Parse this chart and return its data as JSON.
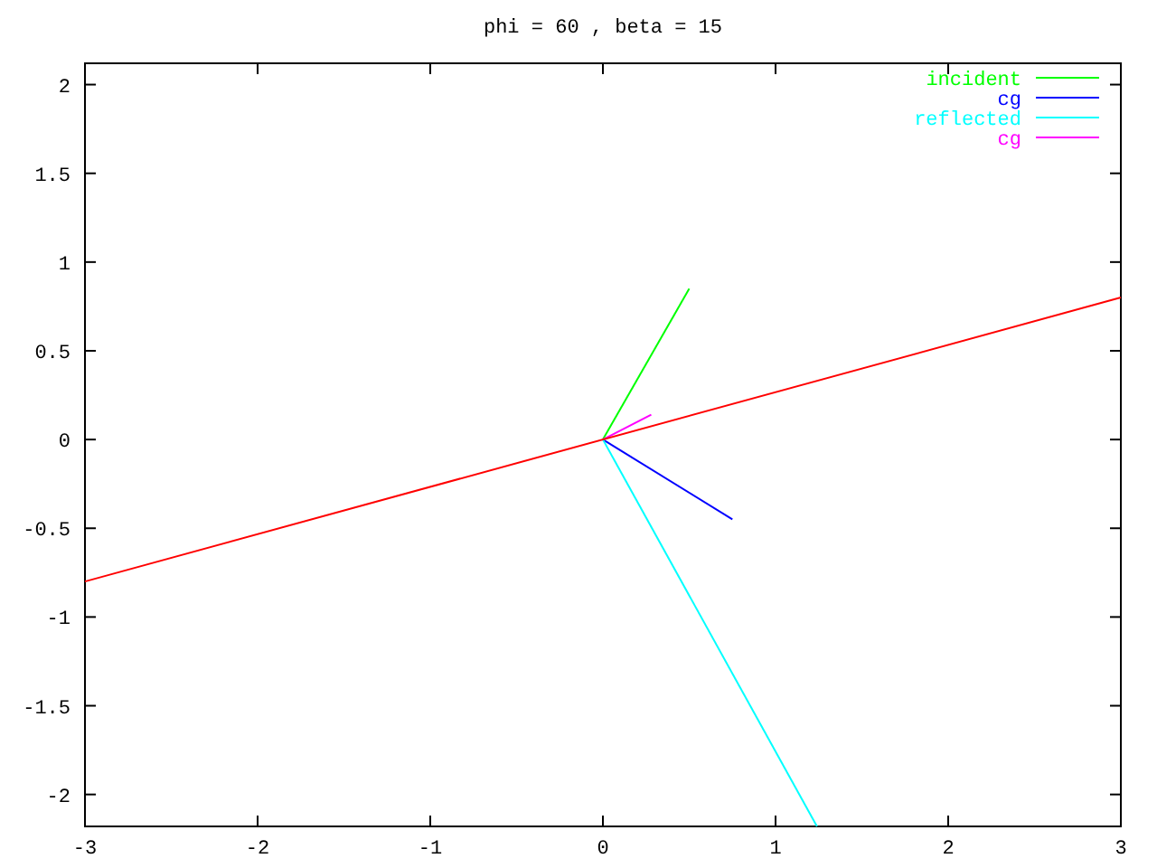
{
  "chart_data": {
    "type": "line",
    "title": "phi = 60 , beta = 15",
    "series": [
      {
        "name": "incident",
        "color": "#00ff00",
        "x": [
          0,
          0.5
        ],
        "values": [
          0,
          0.85
        ]
      },
      {
        "name": "cg",
        "color": "#0000ff",
        "x": [
          0,
          0.75
        ],
        "values": [
          0,
          -0.45
        ]
      },
      {
        "name": "reflected",
        "color": "#00ffff",
        "x": [
          0,
          1.24
        ],
        "values": [
          0,
          -2.18
        ]
      },
      {
        "name": "cg",
        "color": "#ff00ff",
        "x": [
          0,
          0.28
        ],
        "values": [
          0,
          0.14
        ]
      },
      {
        "color": "#ff0000",
        "x": [
          -3,
          3
        ],
        "values": [
          -0.8,
          0.8
        ]
      }
    ],
    "xlim": [
      -3,
      3
    ],
    "xticks": [
      -3,
      -2,
      -1,
      0,
      1,
      2,
      3
    ],
    "ylim": [
      -2.18,
      2.12
    ],
    "yticks": [
      -2,
      -1.5,
      -1,
      -0.5,
      0,
      0.5,
      1,
      1.5,
      2
    ],
    "legend": "top right",
    "grid": false,
    "marker": "none",
    "line_style": "solid"
  }
}
